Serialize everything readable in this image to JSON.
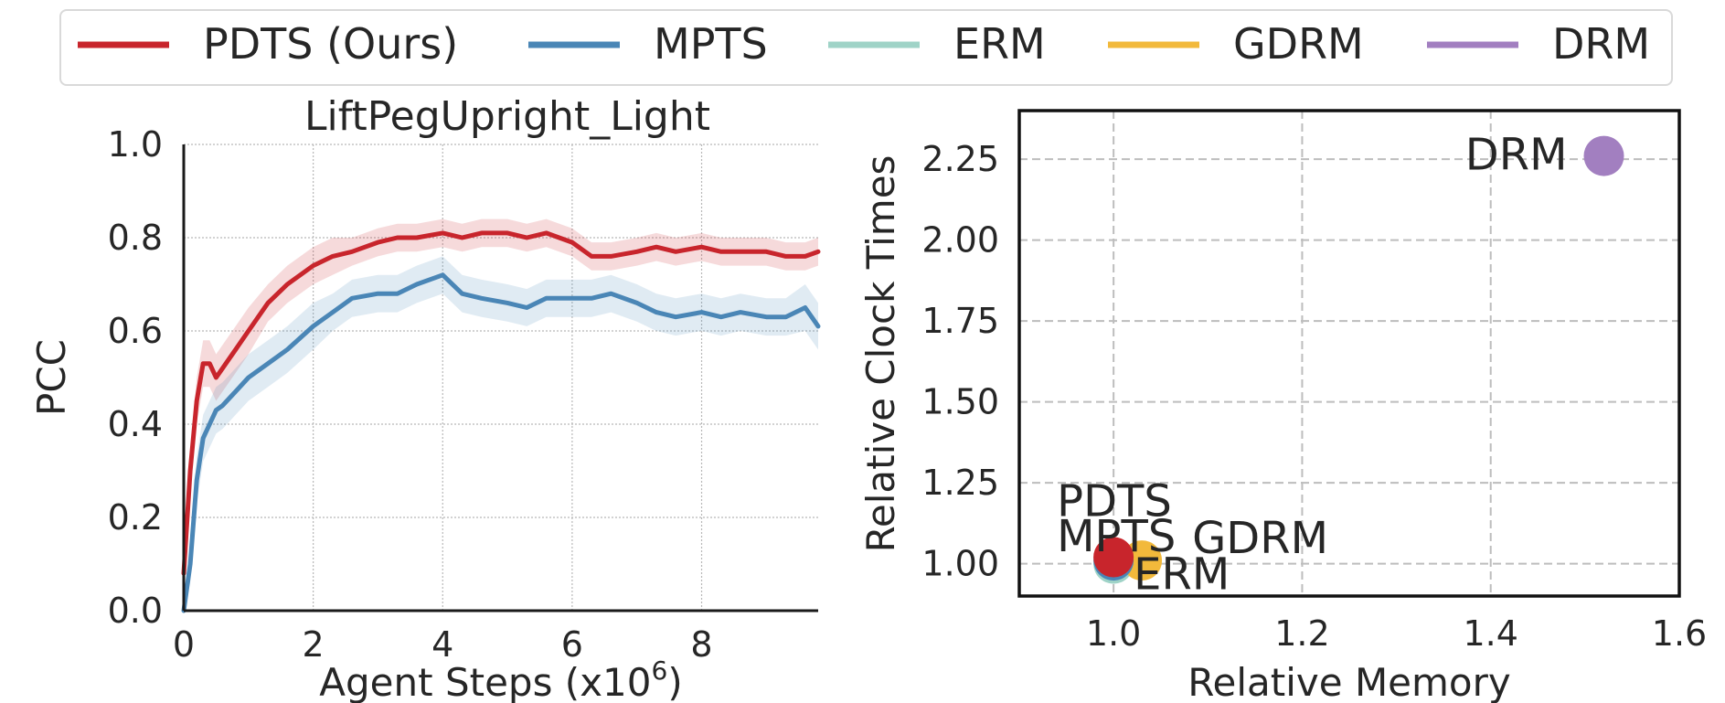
{
  "legend": [
    {
      "name": "PDTS (Ours)",
      "color": "#c8252c"
    },
    {
      "name": "MPTS",
      "color": "#4a86b6"
    },
    {
      "name": "ERM",
      "color": "#9fd3c7"
    },
    {
      "name": "GDRM",
      "color": "#f2b93b"
    },
    {
      "name": "DRM",
      "color": "#a27fc0"
    }
  ],
  "chart_data": [
    {
      "type": "line",
      "title": "LiftPegUpright_Light",
      "xlabel": "Agent Steps (x10",
      "xlabel_sup": "6",
      "xlabel_close": ")",
      "ylabel": "PCC",
      "xlim": [
        0,
        9.8
      ],
      "ylim": [
        0,
        1
      ],
      "xticks": [
        "0",
        "2",
        "4",
        "6",
        "8"
      ],
      "yticks": [
        "0.0",
        "0.2",
        "0.4",
        "0.6",
        "0.8",
        "1.0"
      ],
      "grid": true,
      "x": [
        0.0,
        0.1,
        0.2,
        0.3,
        0.4,
        0.5,
        0.6,
        0.8,
        1.0,
        1.3,
        1.6,
        2.0,
        2.3,
        2.6,
        3.0,
        3.3,
        3.6,
        4.0,
        4.3,
        4.6,
        5.0,
        5.3,
        5.6,
        6.0,
        6.3,
        6.6,
        7.0,
        7.3,
        7.6,
        8.0,
        8.3,
        8.6,
        9.0,
        9.3,
        9.6,
        9.8
      ],
      "series": [
        {
          "name": "PDTS (Ours)",
          "color": "#c8252c",
          "values": [
            0.08,
            0.3,
            0.45,
            0.53,
            0.53,
            0.5,
            0.52,
            0.56,
            0.6,
            0.66,
            0.7,
            0.74,
            0.76,
            0.77,
            0.79,
            0.8,
            0.8,
            0.81,
            0.8,
            0.81,
            0.81,
            0.8,
            0.81,
            0.79,
            0.76,
            0.76,
            0.77,
            0.78,
            0.77,
            0.78,
            0.77,
            0.77,
            0.77,
            0.76,
            0.76,
            0.77
          ],
          "band": [
            0.03,
            0.04,
            0.05,
            0.05,
            0.05,
            0.05,
            0.05,
            0.05,
            0.05,
            0.04,
            0.04,
            0.04,
            0.04,
            0.03,
            0.03,
            0.03,
            0.03,
            0.03,
            0.03,
            0.03,
            0.03,
            0.03,
            0.03,
            0.03,
            0.03,
            0.03,
            0.03,
            0.03,
            0.03,
            0.03,
            0.03,
            0.03,
            0.03,
            0.03,
            0.03,
            0.03
          ]
        },
        {
          "name": "MPTS",
          "color": "#4a86b6",
          "values": [
            0.0,
            0.1,
            0.28,
            0.37,
            0.4,
            0.43,
            0.44,
            0.47,
            0.5,
            0.53,
            0.56,
            0.61,
            0.64,
            0.67,
            0.68,
            0.68,
            0.7,
            0.72,
            0.68,
            0.67,
            0.66,
            0.65,
            0.67,
            0.67,
            0.67,
            0.68,
            0.66,
            0.64,
            0.63,
            0.64,
            0.63,
            0.64,
            0.63,
            0.63,
            0.65,
            0.61
          ],
          "band": [
            0.03,
            0.04,
            0.05,
            0.05,
            0.05,
            0.05,
            0.05,
            0.05,
            0.05,
            0.05,
            0.05,
            0.05,
            0.04,
            0.04,
            0.04,
            0.04,
            0.04,
            0.04,
            0.04,
            0.04,
            0.04,
            0.04,
            0.04,
            0.04,
            0.04,
            0.04,
            0.04,
            0.04,
            0.04,
            0.04,
            0.04,
            0.04,
            0.04,
            0.04,
            0.05,
            0.05
          ]
        }
      ]
    },
    {
      "type": "scatter",
      "title": "",
      "xlabel": "Relative Memory",
      "ylabel": "Relative Clock Times",
      "xlim": [
        0.9,
        1.6
      ],
      "ylim": [
        0.9,
        2.4
      ],
      "xticks": [
        "1.0",
        "1.2",
        "1.4",
        "1.6"
      ],
      "yticks": [
        "1.00",
        "1.25",
        "1.50",
        "1.75",
        "2.00",
        "2.25"
      ],
      "grid": true,
      "points": [
        {
          "name": "ERM",
          "x": 1.0,
          "y": 1.0,
          "color": "#9fd3c7"
        },
        {
          "name": "GDRM",
          "x": 1.03,
          "y": 1.01,
          "color": "#f2b93b"
        },
        {
          "name": "MPTS",
          "x": 1.0,
          "y": 1.01,
          "color": "#4a86b6"
        },
        {
          "name": "PDTS",
          "x": 1.0,
          "y": 1.02,
          "color": "#c8252c"
        },
        {
          "name": "DRM",
          "x": 1.52,
          "y": 2.26,
          "color": "#a27fc0"
        }
      ]
    }
  ]
}
